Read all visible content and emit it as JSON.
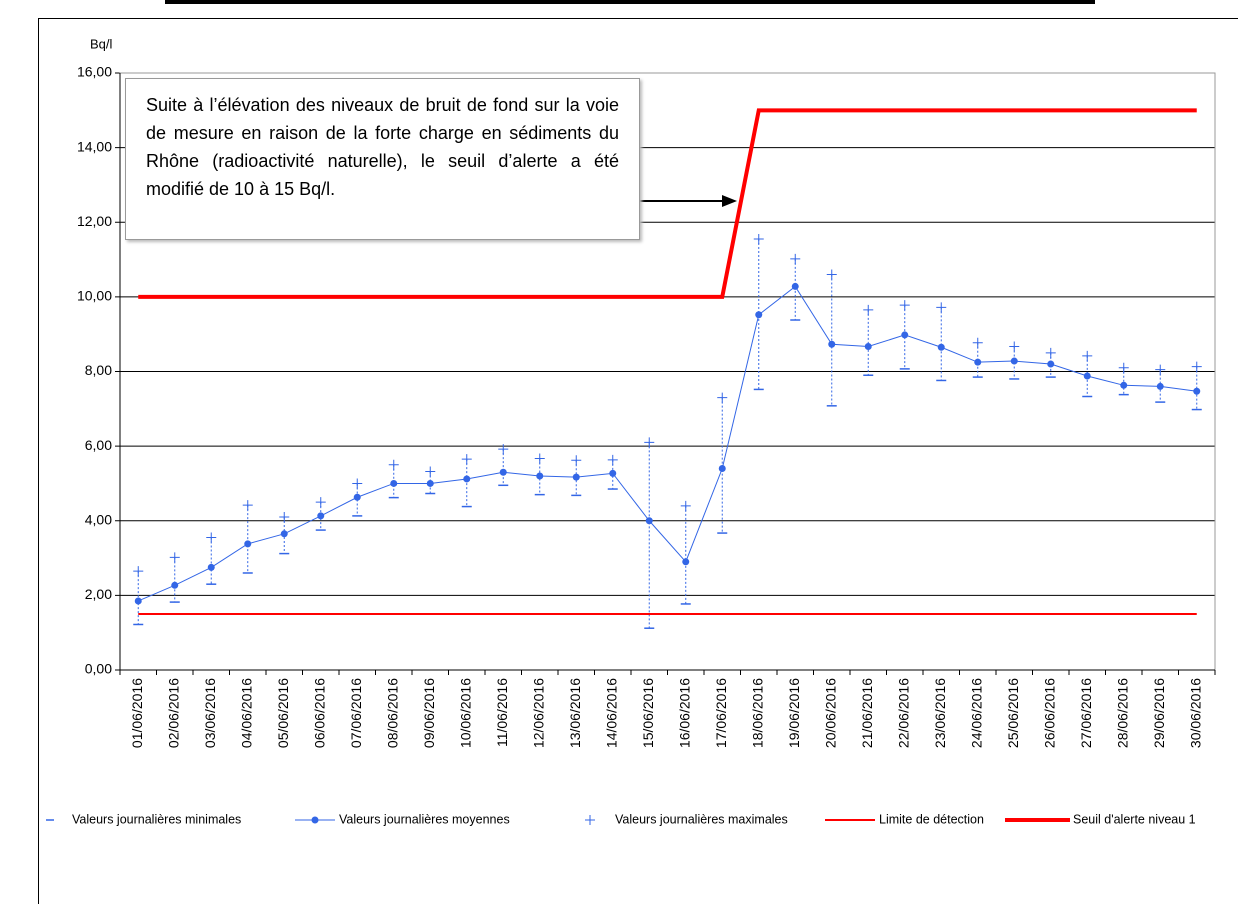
{
  "chart_data": {
    "type": "line",
    "y_label": "Bq/l",
    "annotation": "Suite à l’élévation des niveaux de bruit de fond sur la voie de mesure en raison de la forte charge en sédiments du Rhône (radioactivité naturelle), le seuil d’alerte a été modifié de 10 à 15 Bq/l.",
    "categories": [
      "01/06/2016",
      "02/06/2016",
      "03/06/2016",
      "04/06/2016",
      "05/06/2016",
      "06/06/2016",
      "07/06/2016",
      "08/06/2016",
      "09/06/2016",
      "10/06/2016",
      "11/06/2016",
      "12/06/2016",
      "13/06/2016",
      "14/06/2016",
      "15/06/2016",
      "16/06/2016",
      "17/06/2016",
      "18/06/2016",
      "19/06/2016",
      "20/06/2016",
      "21/06/2016",
      "22/06/2016",
      "23/06/2016",
      "24/06/2016",
      "25/06/2016",
      "26/06/2016",
      "27/06/2016",
      "28/06/2016",
      "29/06/2016",
      "30/06/2016"
    ],
    "series": [
      {
        "name": "Valeurs journalières minimales",
        "color": "#3366e6",
        "style": "dash-marker",
        "values": [
          1.22,
          1.82,
          2.3,
          2.6,
          3.12,
          3.75,
          4.13,
          4.62,
          4.73,
          4.38,
          4.95,
          4.7,
          4.68,
          4.85,
          1.12,
          1.77,
          3.67,
          7.52,
          9.38,
          7.08,
          7.9,
          8.07,
          7.76,
          7.85,
          7.8,
          7.85,
          7.33,
          7.38,
          7.18,
          6.98
        ]
      },
      {
        "name": "Valeurs journalières moyennes",
        "color": "#3366e6",
        "style": "line-dot",
        "values": [
          1.85,
          2.27,
          2.75,
          3.38,
          3.65,
          4.13,
          4.63,
          5.0,
          5.0,
          5.12,
          5.3,
          5.2,
          5.17,
          5.27,
          4.0,
          2.9,
          5.4,
          9.52,
          10.28,
          8.73,
          8.67,
          8.98,
          8.65,
          8.25,
          8.28,
          8.2,
          7.88,
          7.63,
          7.6,
          7.47
        ]
      },
      {
        "name": "Valeurs journalières maximales",
        "color": "#3366e6",
        "style": "plus-marker",
        "values": [
          2.65,
          3.02,
          3.55,
          4.42,
          4.1,
          4.5,
          5.0,
          5.5,
          5.32,
          5.65,
          5.92,
          5.67,
          5.62,
          5.63,
          6.1,
          4.4,
          7.3,
          11.55,
          11.02,
          10.6,
          9.65,
          9.78,
          9.72,
          8.77,
          8.67,
          8.5,
          8.42,
          8.1,
          8.05,
          8.13
        ]
      },
      {
        "name": "Limite de détection",
        "color": "#ff0000",
        "style": "thin-line",
        "values": [
          1.5,
          1.5,
          1.5,
          1.5,
          1.5,
          1.5,
          1.5,
          1.5,
          1.5,
          1.5,
          1.5,
          1.5,
          1.5,
          1.5,
          1.5,
          1.5,
          1.5,
          1.5,
          1.5,
          1.5,
          1.5,
          1.5,
          1.5,
          1.5,
          1.5,
          1.5,
          1.5,
          1.5,
          1.5,
          1.5
        ]
      },
      {
        "name": "Seuil d'alerte niveau 1",
        "color": "#ff0000",
        "style": "thick-line",
        "values": [
          10,
          10,
          10,
          10,
          10,
          10,
          10,
          10,
          10,
          10,
          10,
          10,
          10,
          10,
          10,
          10,
          10,
          15,
          15,
          15,
          15,
          15,
          15,
          15,
          15,
          15,
          15,
          15,
          15,
          15
        ]
      }
    ],
    "ylim": [
      0,
      16
    ],
    "yticks": [
      {
        "value": 0,
        "label": "0,00"
      },
      {
        "value": 2,
        "label": "2,00"
      },
      {
        "value": 4,
        "label": "4,00"
      },
      {
        "value": 6,
        "label": "6,00"
      },
      {
        "value": 8,
        "label": "8,00"
      },
      {
        "value": 10,
        "label": "10,00"
      },
      {
        "value": 12,
        "label": "12,00"
      },
      {
        "value": 14,
        "label": "14,00"
      },
      {
        "value": 16,
        "label": "16,00"
      }
    ],
    "grid": true,
    "legend": "bottom"
  }
}
